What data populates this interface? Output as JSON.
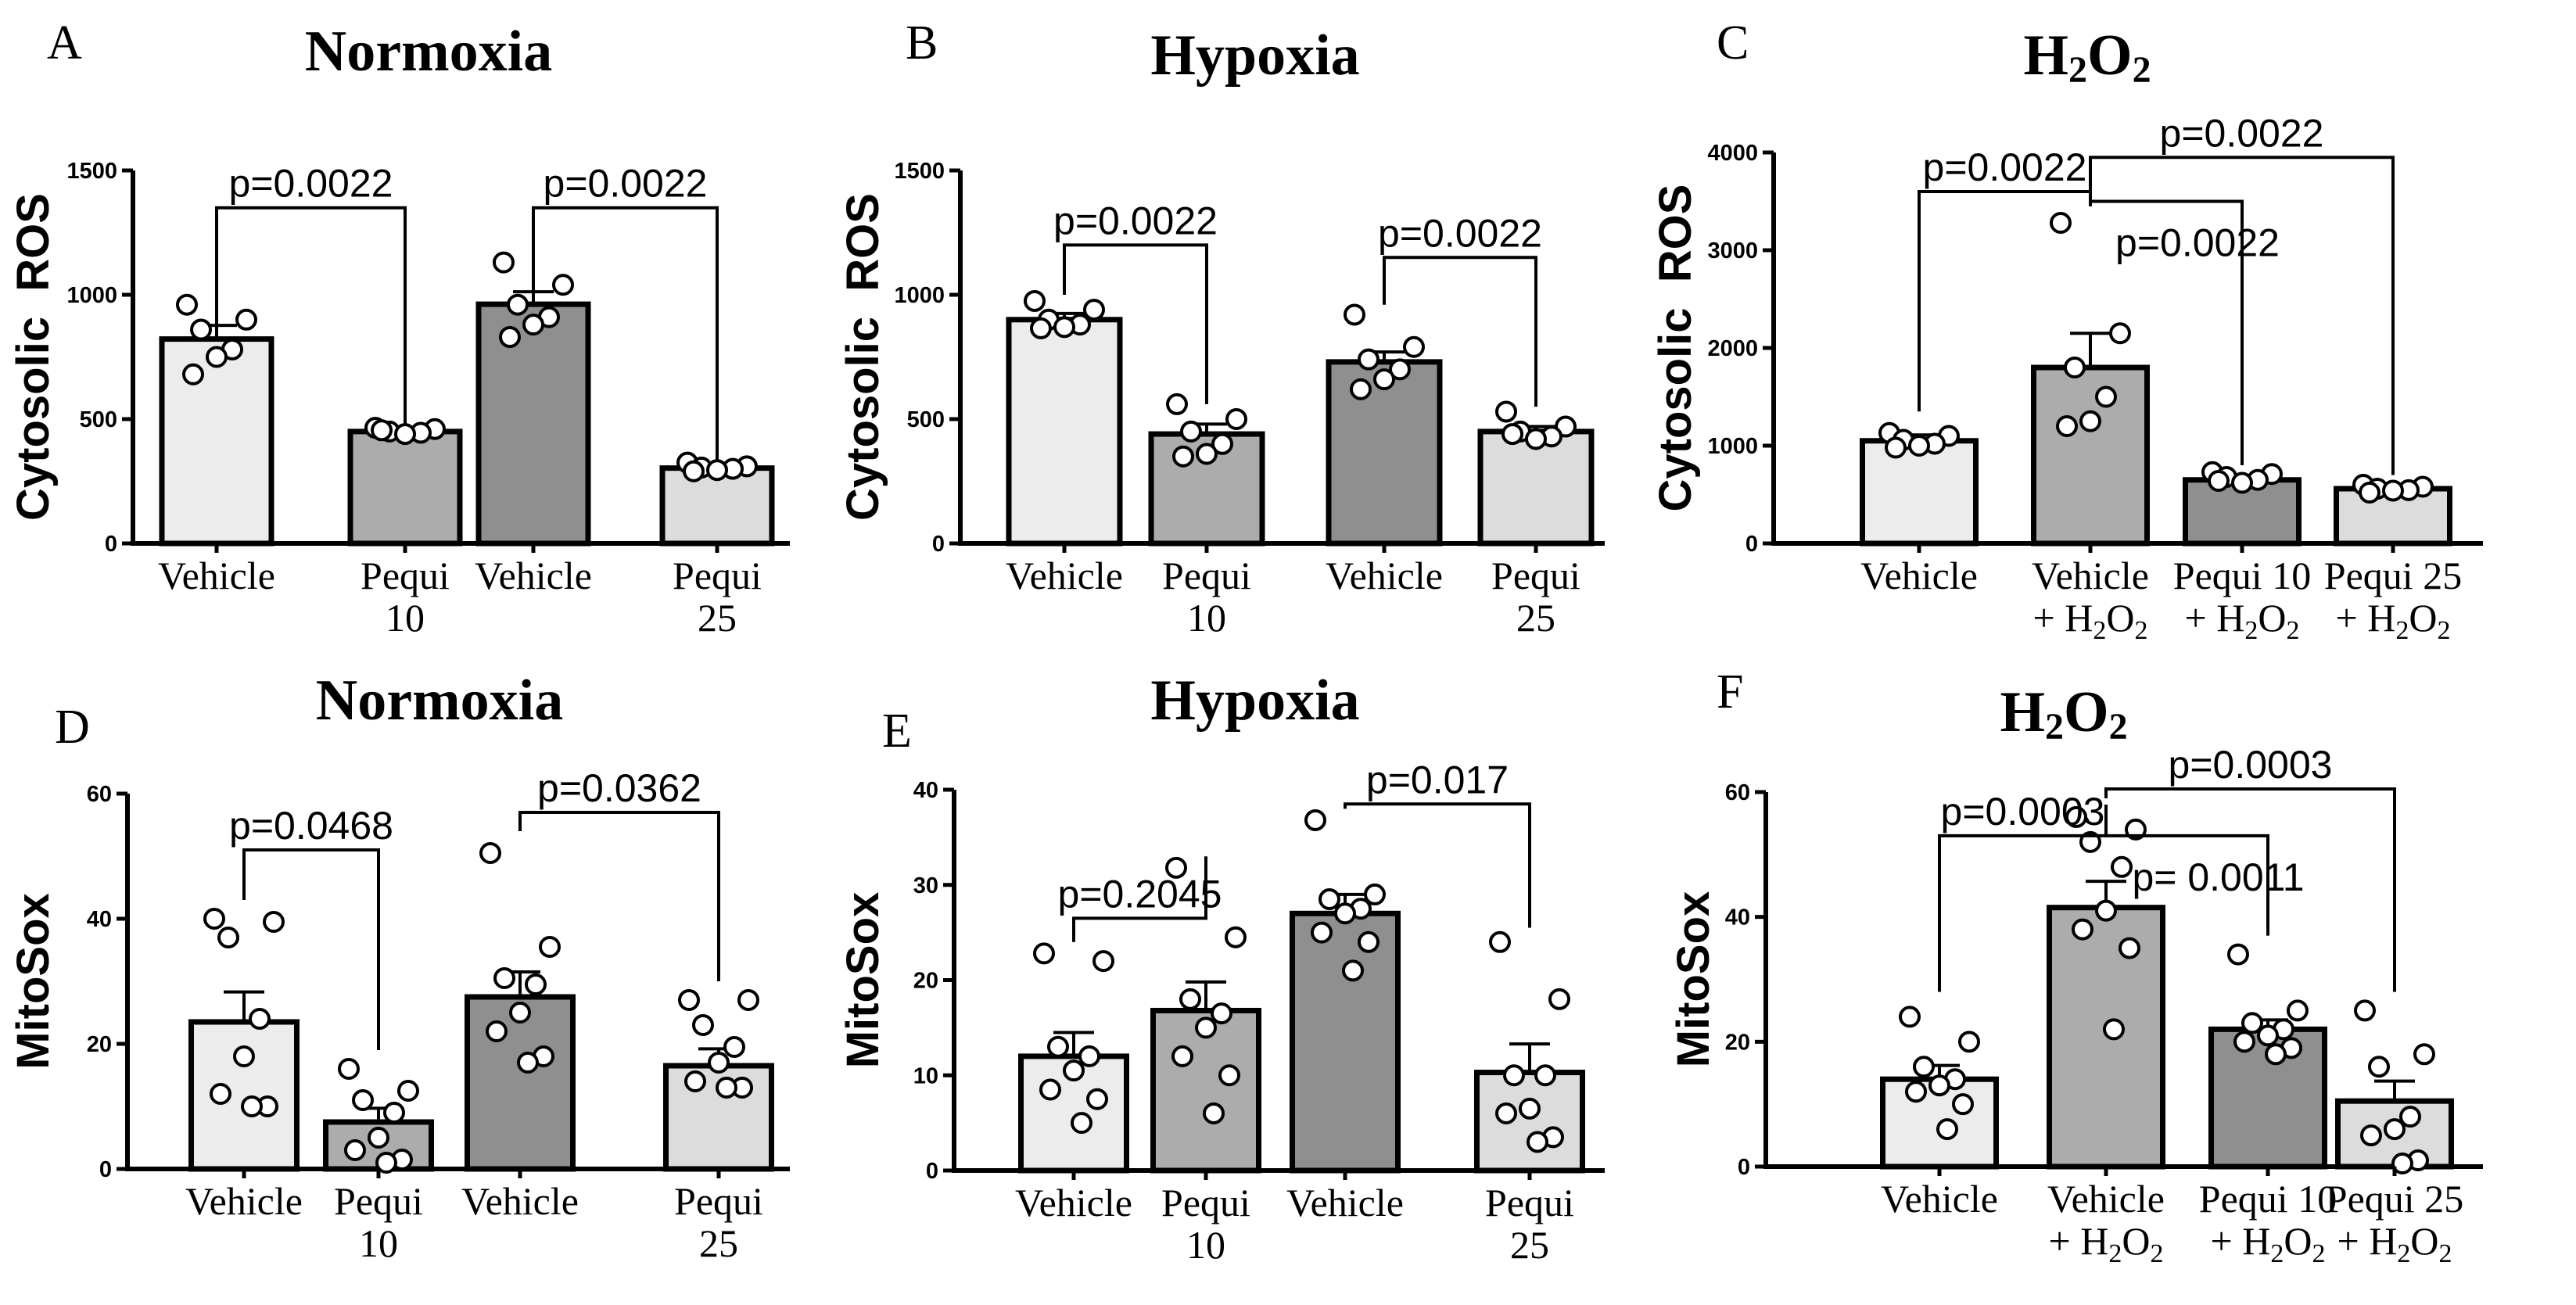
{
  "chart_data": [
    {
      "id": "A",
      "type": "bar",
      "panel_label": "A",
      "title": "Normoxia",
      "ylabel": "Cytosolic  ROS",
      "ylim": [
        0,
        1500
      ],
      "yticks": [
        0,
        500,
        1000,
        1500
      ],
      "categories": [
        {
          "line1": "Vehicle",
          "line2": ""
        },
        {
          "line1": "Pequi",
          "line2": "10"
        },
        {
          "line1": "Vehicle",
          "line2": ""
        },
        {
          "line1": "Pequi",
          "line2": "25"
        }
      ],
      "bar_colors": [
        "#ececec",
        "#acacac",
        "#8f8f8f",
        "#dcdcdc"
      ],
      "values": [
        822,
        450,
        962,
        303
      ],
      "sem": [
        55,
        10,
        50,
        10
      ],
      "points": [
        [
          960,
          900,
          860,
          780,
          750,
          680
        ],
        [
          465,
          460,
          450,
          445,
          440,
          455
        ],
        [
          1130,
          1040,
          960,
          910,
          880,
          830
        ],
        [
          325,
          310,
          305,
          300,
          295,
          290
        ]
      ],
      "annotations": [
        {
          "label": "p=0.0022",
          "from": 0,
          "to": 1,
          "y": 1350,
          "tip_from": 860,
          "tip_to": 480
        },
        {
          "label": "p=0.0022",
          "from": 2,
          "to": 3,
          "y": 1350,
          "tip_from": 1000,
          "tip_to": 330
        }
      ]
    },
    {
      "id": "B",
      "type": "bar",
      "panel_label": "B",
      "title": "Hypoxia",
      "ylabel": "Cytosolic  ROS",
      "ylim": [
        0,
        1500
      ],
      "yticks": [
        0,
        500,
        1000,
        1500
      ],
      "categories": [
        {
          "line1": "Vehicle",
          "line2": ""
        },
        {
          "line1": "Pequi",
          "line2": "10"
        },
        {
          "line1": "Vehicle",
          "line2": ""
        },
        {
          "line1": "Pequi",
          "line2": "25"
        }
      ],
      "bar_colors": [
        "#ececec",
        "#acacac",
        "#8f8f8f",
        "#dcdcdc"
      ],
      "values": [
        900,
        440,
        730,
        450
      ],
      "sem": [
        25,
        40,
        40,
        20
      ],
      "points": [
        [
          975,
          940,
          900,
          880,
          870,
          865
        ],
        [
          560,
          500,
          450,
          400,
          360,
          350
        ],
        [
          920,
          790,
          740,
          700,
          660,
          620
        ],
        [
          530,
          470,
          450,
          430,
          420,
          440
        ]
      ],
      "annotations": [
        {
          "label": "p=0.0022",
          "from": 0,
          "to": 1,
          "y": 1200,
          "tip_from": 1000,
          "tip_to": 560
        },
        {
          "label": "p=0.0022",
          "from": 2,
          "to": 3,
          "y": 1150,
          "tip_from": 960,
          "tip_to": 550
        }
      ]
    },
    {
      "id": "C",
      "type": "bar",
      "panel_label": "C",
      "title": "H2O2",
      "ylabel": "Cytosolic  ROS",
      "ylim": [
        0,
        4000
      ],
      "yticks": [
        0,
        1000,
        2000,
        3000,
        4000
      ],
      "categories": [
        {
          "line1": "Vehicle",
          "line2": ""
        },
        {
          "line1": "Vehicle",
          "line2": "+ H2O2"
        },
        {
          "line1": "Pequi 10",
          "line2": "+ H2O2"
        },
        {
          "line1": "Pequi 25",
          "line2": "+ H2O2"
        }
      ],
      "bar_colors": [
        "#ececec",
        "#acacac",
        "#8f8f8f",
        "#dcdcdc"
      ],
      "values": [
        1050,
        1800,
        650,
        560
      ],
      "sem": [
        60,
        350,
        30,
        30
      ],
      "points": [
        [
          1130,
          1100,
          1060,
          1020,
          1000,
          980
        ],
        [
          3280,
          2150,
          1800,
          1500,
          1250,
          1200
        ],
        [
          730,
          710,
          680,
          650,
          620,
          640
        ],
        [
          600,
          580,
          560,
          545,
          540,
          520
        ]
      ],
      "annotations": [
        {
          "label": "p=0.0022",
          "from": 0,
          "to": 1,
          "y": 3600,
          "tip_from": 1350,
          "tip_to": 3450
        },
        {
          "label": "p=0.0022",
          "from": 1,
          "to": 2,
          "y": 3500,
          "tip_from": 3450,
          "tip_to": 800,
          "label_offset": 1
        },
        {
          "label": "p=0.0022",
          "from": 1,
          "to": 3,
          "y": 3950,
          "tip_from": 3600,
          "tip_to": 700
        }
      ]
    },
    {
      "id": "D",
      "type": "bar",
      "panel_label": "D",
      "title": "Normoxia",
      "ylabel": "MitoSox",
      "ylim": [
        0,
        60
      ],
      "yticks": [
        0,
        20,
        40,
        60
      ],
      "categories": [
        {
          "line1": "Vehicle",
          "line2": ""
        },
        {
          "line1": "Pequi",
          "line2": "10"
        },
        {
          "line1": "Vehicle",
          "line2": ""
        },
        {
          "line1": "Pequi",
          "line2": "25"
        }
      ],
      "bar_colors": [
        "#ececec",
        "#acacac",
        "#8f8f8f",
        "#dcdcdc"
      ],
      "values": [
        23.5,
        7.5,
        27.5,
        16.5
      ],
      "sem": [
        4.8,
        2.2,
        4,
        2.7
      ],
      "points": [
        [
          40,
          39.5,
          37,
          24,
          18,
          12,
          10,
          10
        ],
        [
          16,
          12.5,
          11,
          9,
          5,
          3,
          1.5,
          1
        ],
        [
          50.5,
          35.5,
          30.5,
          29.5,
          25,
          22,
          18,
          17
        ],
        [
          27,
          27,
          23,
          19.5,
          17,
          14,
          13,
          13
        ]
      ],
      "annotations": [
        {
          "label": "p=0.0468",
          "from": 0,
          "to": 1,
          "y": 51,
          "tip_from": 43,
          "tip_to": 19
        },
        {
          "label": "p=0.0362",
          "from": 2,
          "to": 3,
          "y": 57,
          "tip_from": 54,
          "tip_to": 30
        }
      ]
    },
    {
      "id": "E",
      "type": "bar",
      "panel_label": "E",
      "title": "Hypoxia",
      "ylabel": "MitoSox",
      "ylim": [
        0,
        40
      ],
      "yticks": [
        0,
        10,
        20,
        30,
        40
      ],
      "categories": [
        {
          "line1": "Vehicle",
          "line2": ""
        },
        {
          "line1": "Pequi",
          "line2": "10"
        },
        {
          "line1": "Vehicle",
          "line2": ""
        },
        {
          "line1": "Pequi",
          "line2": "25"
        }
      ],
      "bar_colors": [
        "#ececec",
        "#acacac",
        "#8f8f8f",
        "#dcdcdc"
      ],
      "values": [
        12,
        16.8,
        27,
        10.3
      ],
      "sem": [
        2.5,
        3,
        2,
        3
      ],
      "points": [
        [
          22.8,
          22,
          13,
          12,
          10.5,
          8.5,
          7.5,
          5
        ],
        [
          31.8,
          24.5,
          18,
          16.5,
          15,
          12,
          10,
          6
        ],
        [
          36.8,
          29,
          28.5,
          27.5,
          27,
          25,
          24,
          21
        ],
        [
          24,
          18,
          10,
          10,
          6.5,
          6,
          3.5,
          3
        ]
      ],
      "annotations": [
        {
          "label": "p=0.2045",
          "from": 0,
          "to": 1,
          "y": 26.5,
          "tip_from": 24,
          "tip_to": 33
        },
        {
          "label": "p=0.017",
          "from": 2,
          "to": 3,
          "y": 38.5,
          "tip_from": 38,
          "tip_to": 25.5
        }
      ]
    },
    {
      "id": "F",
      "type": "bar",
      "panel_label": "F",
      "title": "H2O2",
      "ylabel": "MitoSox",
      "ylim": [
        0,
        60
      ],
      "yticks": [
        0,
        20,
        40,
        60
      ],
      "categories": [
        {
          "line1": "Vehicle",
          "line2": ""
        },
        {
          "line1": "Vehicle",
          "line2": "+ H2O2"
        },
        {
          "line1": "Pequi 10",
          "line2": "+ H2O2"
        },
        {
          "line1": "Pequi 25",
          "line2": "+ H2O2"
        }
      ],
      "bar_colors": [
        "#ececec",
        "#acacac",
        "#8f8f8f",
        "#dcdcdc"
      ],
      "values": [
        14,
        41.5,
        22,
        10.5
      ],
      "sem": [
        2.2,
        4.2,
        1.5,
        3.2
      ],
      "points": [
        [
          24,
          20,
          16,
          14,
          13,
          12,
          10,
          6
        ],
        [
          56,
          54,
          52,
          48,
          41,
          38,
          35,
          22
        ],
        [
          34,
          25,
          23,
          22,
          21,
          20,
          19,
          18
        ],
        [
          25,
          18,
          16,
          8,
          6,
          5,
          1,
          0.5
        ]
      ],
      "annotations": [
        {
          "label": "p=0.0003",
          "from": 0,
          "to": 1,
          "y": 53,
          "tip_from": 28,
          "tip_to": 58
        },
        {
          "label": "p= 0.0011",
          "from": 1,
          "to": 2,
          "y": 53,
          "tip_from": 58,
          "tip_to": 37,
          "label_offset": 1
        },
        {
          "label": "p=0.0003",
          "from": 1,
          "to": 3,
          "y": 60.5,
          "tip_from": 59,
          "tip_to": 28
        }
      ]
    }
  ]
}
